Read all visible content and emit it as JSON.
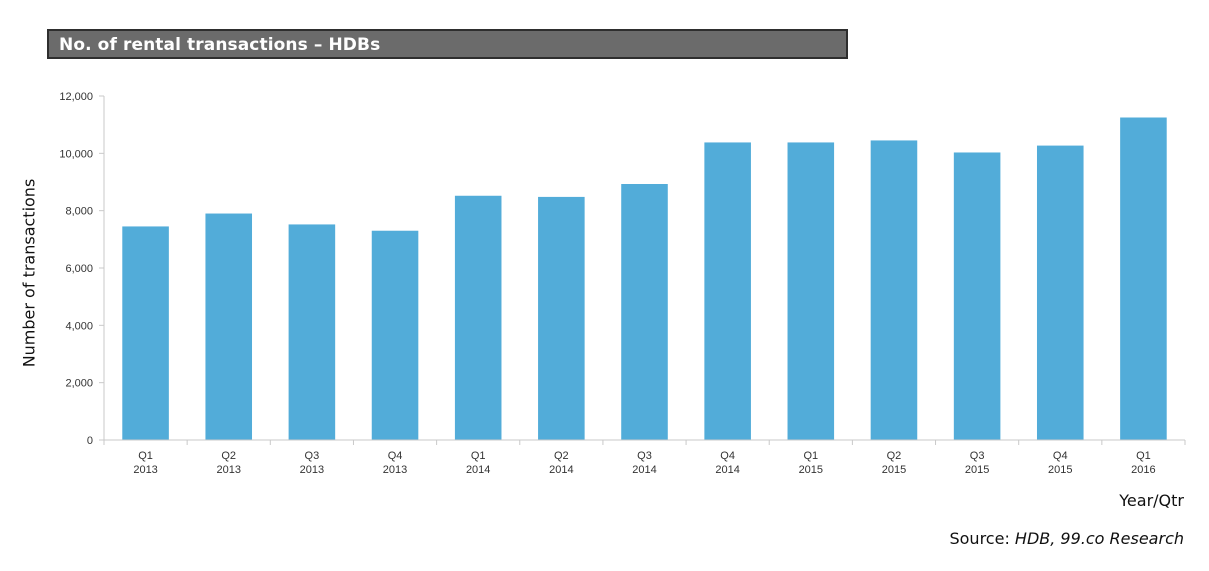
{
  "header": {
    "title": "No. of rental transactions – HDBs"
  },
  "colors": {
    "bar": "#52acd9",
    "title_bg": "#6b6b6b",
    "axis": "#c9c9c9"
  },
  "chart_data": {
    "type": "bar",
    "title": "No. of rental transactions – HDBs",
    "ylabel": "Number of transactions",
    "xlabel": "Year/Qtr",
    "ylim": [
      0,
      12000
    ],
    "yticks": [
      "0",
      "2,000",
      "4,000",
      "6,000",
      "8,000",
      "10,000",
      "12,000"
    ],
    "categories": [
      [
        "Q1",
        "2013"
      ],
      [
        "Q2",
        "2013"
      ],
      [
        "Q3",
        "2013"
      ],
      [
        "Q4",
        "2013"
      ],
      [
        "Q1",
        "2014"
      ],
      [
        "Q2",
        "2014"
      ],
      [
        "Q3",
        "2014"
      ],
      [
        "Q4",
        "2014"
      ],
      [
        "Q1",
        "2015"
      ],
      [
        "Q2",
        "2015"
      ],
      [
        "Q3",
        "2015"
      ],
      [
        "Q4",
        "2015"
      ],
      [
        "Q1",
        "2016"
      ]
    ],
    "values": [
      7450,
      7900,
      7520,
      7300,
      8520,
      8480,
      8930,
      10380,
      10380,
      10450,
      10030,
      10270,
      11250
    ],
    "grid": false,
    "legend": "none"
  },
  "footer": {
    "source_label": "Source:",
    "source_text": "HDB, 99.co Research"
  }
}
